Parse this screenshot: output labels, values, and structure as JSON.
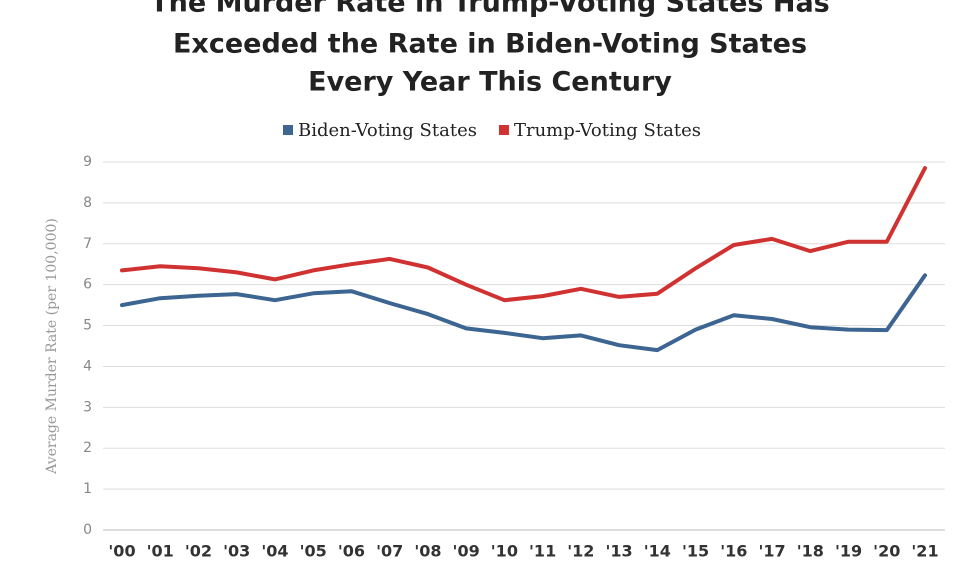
{
  "chart_data": {
    "type": "line",
    "title_lines": [
      "The Murder Rate in Trump-Voting States Has",
      "Exceeded the Rate in Biden-Voting States",
      "Every Year This Century"
    ],
    "ylabel": "Average Murder Rate (per 100,000)",
    "categories": [
      "'00",
      "'01",
      "'02",
      "'03",
      "'04",
      "'05",
      "'06",
      "'07",
      "'08",
      "'09",
      "'10",
      "'11",
      "'12",
      "'13",
      "'14",
      "'15",
      "'16",
      "'17",
      "'18",
      "'19",
      "'20",
      "'21"
    ],
    "series": [
      {
        "name": "Biden-Voting States",
        "color": "#3c6591",
        "values": [
          5.5,
          5.67,
          5.73,
          5.77,
          5.62,
          5.79,
          5.84,
          5.55,
          5.28,
          4.93,
          4.82,
          4.69,
          4.76,
          4.52,
          4.4,
          4.9,
          5.25,
          5.16,
          4.96,
          4.9,
          4.89,
          6.23
        ]
      },
      {
        "name": "Trump-Voting States",
        "color": "#d03232",
        "values": [
          6.35,
          6.45,
          6.4,
          6.3,
          6.13,
          6.35,
          6.5,
          6.63,
          6.42,
          6.0,
          5.62,
          5.72,
          5.9,
          5.7,
          5.78,
          6.4,
          6.97,
          7.12,
          6.82,
          7.05,
          7.05,
          8.85
        ]
      }
    ],
    "ylim": [
      0,
      9
    ],
    "yticks": [
      0,
      1,
      2,
      3,
      4,
      5,
      6,
      7,
      8,
      9
    ],
    "grid": true,
    "legend": "top"
  }
}
